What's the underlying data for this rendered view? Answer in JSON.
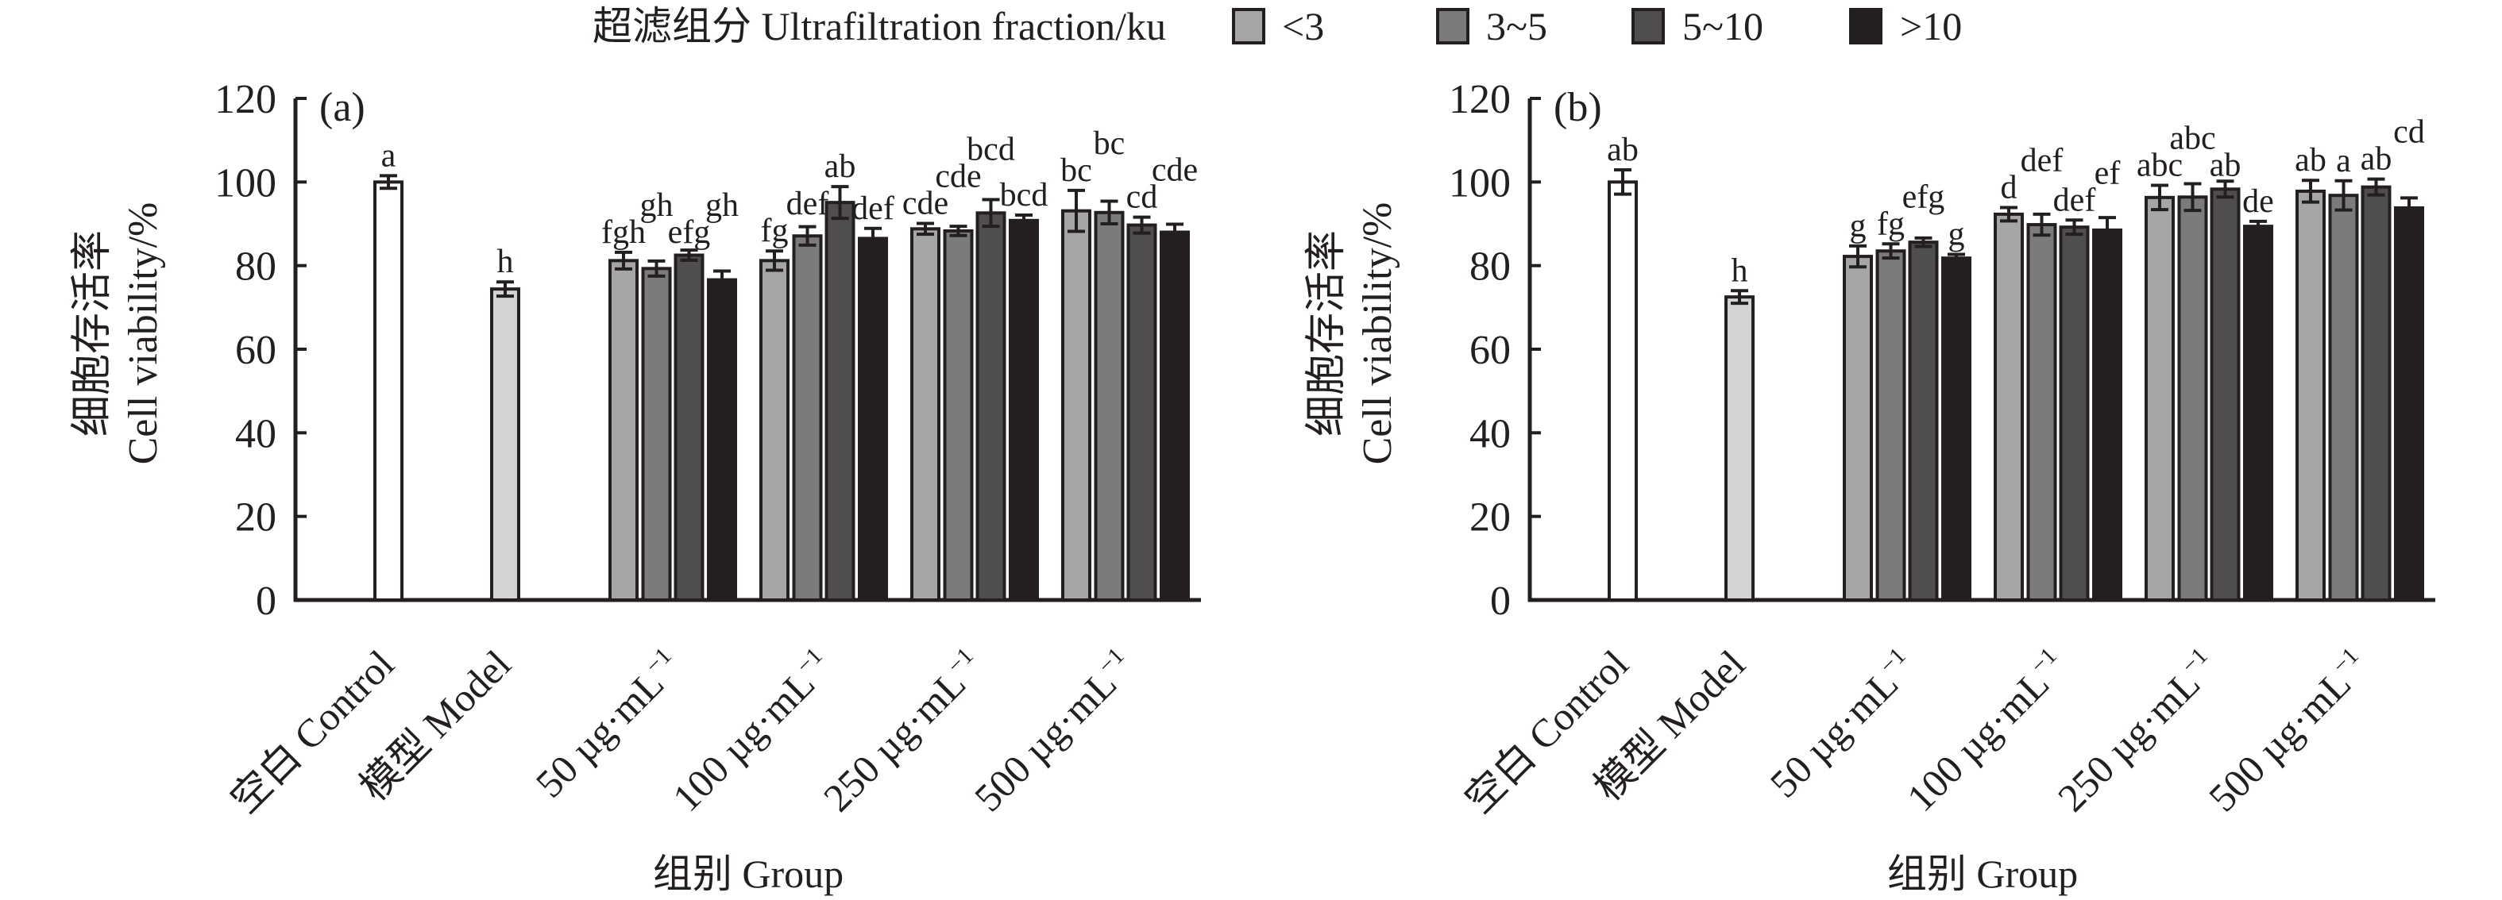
{
  "legend": {
    "title": "超滤组分 Ultrafiltration fraction/ku",
    "items": [
      {
        "label": "<3",
        "color": "#a7a6a7"
      },
      {
        "label": "3~5",
        "color": "#7c7b7c"
      },
      {
        "label": "5~10",
        "color": "#4f4d4e"
      },
      {
        "label": ">10",
        "color": "#231f20"
      }
    ]
  },
  "colors": {
    "outline": "#231f20",
    "control": "#ffffff",
    "model": "#d3d3d3"
  },
  "chart_data": [
    {
      "type": "bar",
      "panel": "(a)",
      "ylabel_cn": "细胞存活率",
      "ylabel_en": "Cell viability/%",
      "xlabel": "组别 Group",
      "ylim": [
        0,
        120
      ],
      "yticks": [
        0,
        20,
        40,
        60,
        80,
        100,
        120
      ],
      "grid": false,
      "legend_position": "top",
      "single_bars": [
        {
          "category": "空白 Control",
          "value": 100.0,
          "error": 1.5,
          "letter": "a",
          "color": "#ffffff"
        },
        {
          "category": "模型 Model",
          "value": 74.4,
          "error": 1.7,
          "letter": "h",
          "color": "#d3d3d3"
        }
      ],
      "categories": [
        {
          "text": "50 µg·mL",
          "sup": "−1"
        },
        {
          "text": "100 µg·mL",
          "sup": "−1"
        },
        {
          "text": "250 µg·mL",
          "sup": "−1"
        },
        {
          "text": "500 µg·mL",
          "sup": "−1"
        }
      ],
      "series": [
        {
          "name": "<3",
          "values": [
            81.2,
            81.2,
            88.8,
            93.1
          ],
          "errors": [
            2.0,
            2.3,
            1.3,
            4.9
          ],
          "letters": [
            "fgh",
            "fg",
            "cde",
            "bc"
          ]
        },
        {
          "name": "3~5",
          "values": [
            79.3,
            87.1,
            88.3,
            92.7
          ],
          "errors": [
            1.8,
            2.2,
            1.1,
            2.7
          ],
          "letters": [
            "gh",
            "def",
            "cde",
            "bc"
          ]
        },
        {
          "name": "5~10",
          "values": [
            82.5,
            95.1,
            92.6,
            89.7
          ],
          "errors": [
            1.2,
            3.8,
            3.2,
            1.9
          ],
          "letters": [
            "efg",
            "ab",
            "bcd",
            "cd"
          ]
        },
        {
          "name": ">10",
          "values": [
            76.6,
            86.5,
            90.8,
            88.0
          ],
          "errors": [
            2.1,
            2.4,
            1.3,
            1.9
          ],
          "letters": [
            "gh",
            "def",
            "bcd",
            "cde"
          ]
        }
      ]
    },
    {
      "type": "bar",
      "panel": "(b)",
      "ylabel_cn": "细胞存活率",
      "ylabel_en": "Cell viability/%",
      "xlabel": "组别 Group",
      "ylim": [
        0,
        120
      ],
      "yticks": [
        0,
        20,
        40,
        60,
        80,
        100,
        120
      ],
      "grid": false,
      "legend_position": "top",
      "single_bars": [
        {
          "category": "空白 Control",
          "value": 100.0,
          "error": 2.9,
          "letter": "ab",
          "color": "#ffffff"
        },
        {
          "category": "模型 Model",
          "value": 72.5,
          "error": 1.5,
          "letter": "h",
          "color": "#d3d3d3"
        }
      ],
      "categories": [
        {
          "text": "50 µg·mL",
          "sup": "−1"
        },
        {
          "text": "100 µg·mL",
          "sup": "−1"
        },
        {
          "text": "250 µg·mL",
          "sup": "−1"
        },
        {
          "text": "500 µg·mL",
          "sup": "−1"
        }
      ],
      "series": [
        {
          "name": "<3",
          "values": [
            82.2,
            92.3,
            96.3,
            97.8
          ],
          "errors": [
            2.5,
            1.6,
            2.9,
            2.6
          ],
          "letters": [
            "g",
            "d",
            "abc",
            "ab"
          ]
        },
        {
          "name": "3~5",
          "values": [
            83.5,
            89.8,
            96.4,
            96.8
          ],
          "errors": [
            1.7,
            2.5,
            3.2,
            3.5
          ],
          "letters": [
            "fg",
            "def",
            "abc",
            "a"
          ]
        },
        {
          "name": "5~10",
          "values": [
            85.6,
            89.2,
            98.3,
            98.8
          ],
          "errors": [
            1.0,
            1.7,
            1.9,
            1.9
          ],
          "letters": [
            "efg",
            "def",
            "ab",
            "ab"
          ]
        },
        {
          "name": ">10",
          "values": [
            81.8,
            88.5,
            89.4,
            93.8
          ],
          "errors": [
            0.9,
            3.0,
            1.2,
            2.4
          ],
          "letters": [
            "g",
            "ef",
            "de",
            "cd"
          ]
        }
      ]
    }
  ]
}
